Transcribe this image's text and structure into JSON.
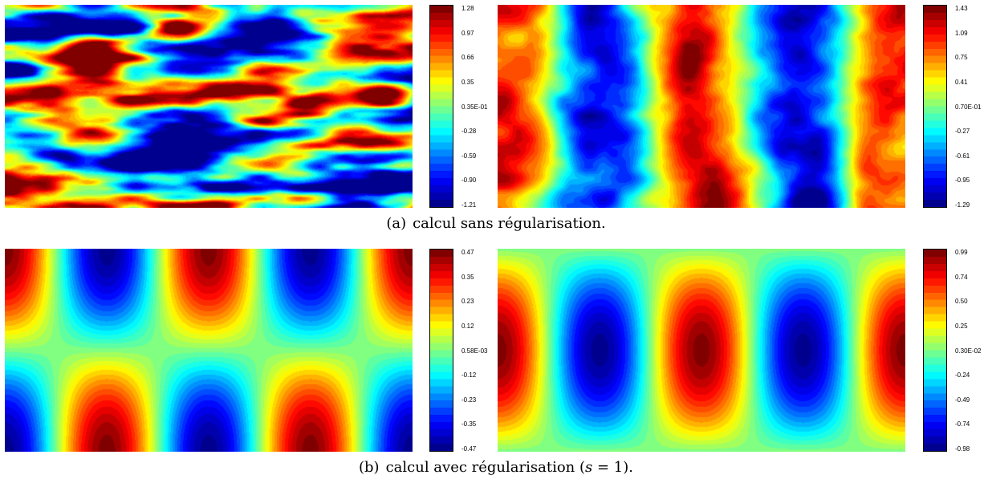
{
  "captions": {
    "a": {
      "tag": "(a)",
      "text": "calcul sans régularisation."
    },
    "b": {
      "tag": "(b)",
      "text_before": "calcul avec régularisation (",
      "var": "s",
      "text_after": " = 1)."
    }
  },
  "colormap": [
    "#00008f",
    "#0000ff",
    "#0080ff",
    "#00ffff",
    "#80ff80",
    "#ffff00",
    "#ff8000",
    "#ff0000",
    "#800000"
  ],
  "chart_data": [
    {
      "type": "heatmap",
      "name": "a-left",
      "pattern": "noisy",
      "colorbar_ticks": [
        "1.28",
        "0.97",
        "0.66",
        "0.35",
        "0.35E-01",
        "-0.28",
        "-0.59",
        "-0.90",
        "-1.21"
      ],
      "range": [
        -1.21,
        1.28
      ]
    },
    {
      "type": "heatmap",
      "name": "a-right",
      "pattern": "noisy-columns",
      "colorbar_ticks": [
        "1.43",
        "1.09",
        "0.75",
        "0.41",
        "0.70E-01",
        "-0.27",
        "-0.61",
        "-0.95",
        "-1.29"
      ],
      "range": [
        -1.29,
        1.43
      ]
    },
    {
      "type": "heatmap",
      "name": "b-left",
      "pattern": "cos-cos",
      "colorbar_ticks": [
        "0.47",
        "0.35",
        "0.23",
        "0.12",
        "0.58E-03",
        "-0.12",
        "-0.23",
        "-0.35",
        "-0.47"
      ],
      "range": [
        -0.47,
        0.47
      ]
    },
    {
      "type": "heatmap",
      "name": "b-right",
      "pattern": "cos-sin",
      "colorbar_ticks": [
        "0.99",
        "0.74",
        "0.50",
        "0.25",
        "0.30E-02",
        "-0.24",
        "-0.49",
        "-0.74",
        "-0.98"
      ],
      "range": [
        -0.98,
        0.99
      ]
    }
  ]
}
